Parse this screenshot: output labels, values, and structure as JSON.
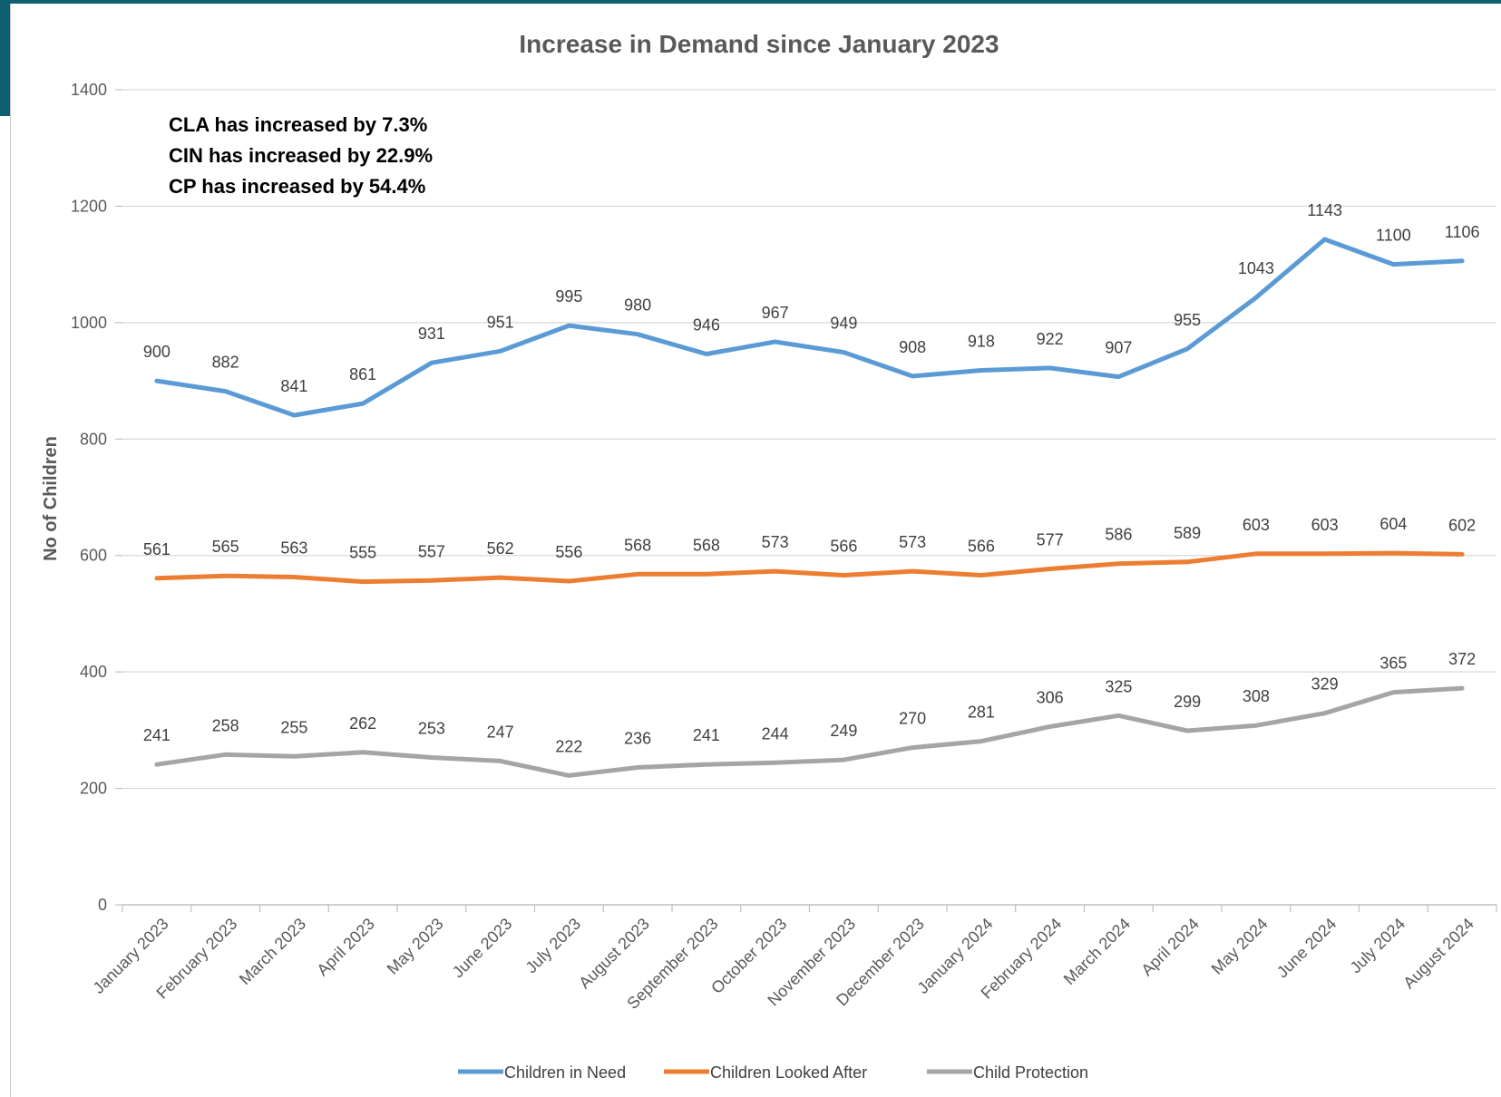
{
  "chart_data": {
    "type": "line",
    "title": "Increase in Demand since January 2023",
    "ylabel": "No of Children",
    "xlabel": "",
    "ylim": [
      0,
      1400
    ],
    "yticks": [
      0,
      200,
      400,
      600,
      800,
      1000,
      1200,
      1400
    ],
    "grid": true,
    "legend_position": "bottom",
    "categories": [
      "January 2023",
      "February 2023",
      "March 2023",
      "April 2023",
      "May 2023",
      "June 2023",
      "July 2023",
      "August 2023",
      "September 2023",
      "October 2023",
      "November 2023",
      "December 2023",
      "January 2024",
      "February 2024",
      "March 2024",
      "April 2024",
      "May 2024",
      "June 2024",
      "July 2024",
      "August 2024"
    ],
    "series": [
      {
        "name": "Children in Need",
        "color": "#5b9bd5",
        "values": [
          900,
          882,
          841,
          861,
          931,
          951,
          995,
          980,
          946,
          967,
          949,
          908,
          918,
          922,
          907,
          955,
          1043,
          1143,
          1100,
          1106
        ]
      },
      {
        "name": "Children Looked After",
        "color": "#ed7d31",
        "values": [
          561,
          565,
          563,
          555,
          557,
          562,
          556,
          568,
          568,
          573,
          566,
          573,
          566,
          577,
          586,
          589,
          603,
          603,
          604,
          602
        ]
      },
      {
        "name": "Child Protection",
        "color": "#a5a5a5",
        "values": [
          241,
          258,
          255,
          262,
          253,
          247,
          222,
          236,
          241,
          244,
          249,
          270,
          281,
          306,
          325,
          299,
          308,
          329,
          365,
          372
        ]
      }
    ],
    "annotations": [
      "CLA has increased by 7.3%",
      "CIN has increased by  22.9%",
      "CP has increased by 54.4%"
    ]
  }
}
